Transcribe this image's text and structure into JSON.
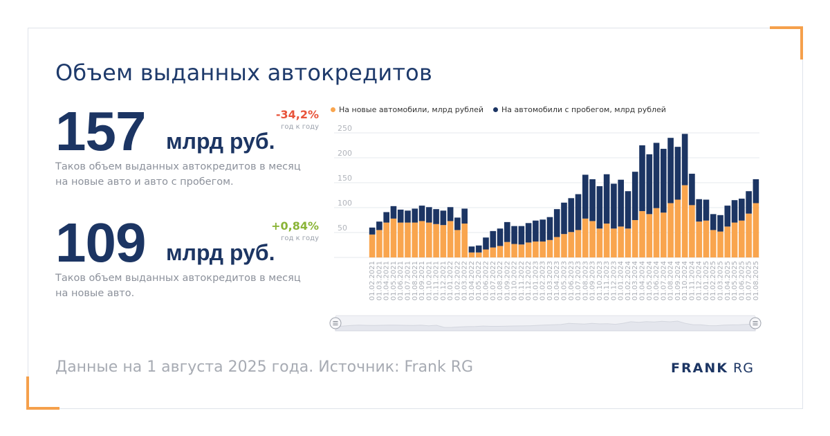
{
  "title": "Объем выданных автокредитов",
  "kpi1": {
    "value": "157",
    "unit": "млрд руб.",
    "change": "-34,2%",
    "change_label": "год к году",
    "change_color": "#e8533a",
    "description_line1": "Таков объем выданных автокредитов в месяц",
    "description_line2": "на новые авто и авто с пробегом."
  },
  "kpi2": {
    "value": "109",
    "unit": "млрд руб.",
    "change": "+0,84%",
    "change_label": "год к году",
    "change_color": "#8ab437",
    "description_line1": "Таков объем выданных автокредитов в месяц",
    "description_line2": "на новые авто."
  },
  "footer": "Данные на 1 августа 2025 года. Источник: Frank RG",
  "logo": {
    "bold": "FRANK",
    "light": "RG"
  },
  "colors": {
    "new": "#f9a54e",
    "used": "#1c3563",
    "accent": "#f5a04b",
    "title": "#1e3a6b"
  },
  "chart_data": {
    "type": "bar",
    "stacked": true,
    "legend_position": "top",
    "grid": true,
    "ylim": [
      0,
      250
    ],
    "yticks": [
      50,
      100,
      150,
      200,
      250
    ],
    "categories": [
      "01.02.2021",
      "01.03.2021",
      "01.04.2021",
      "01.05.2021",
      "01.06.2021",
      "01.07.2021",
      "01.08.2021",
      "01.09.2021",
      "01.10.2021",
      "01.11.2021",
      "01.12.2021",
      "01.01.2022",
      "01.02.2022",
      "01.03.2022",
      "01.04.2022",
      "01.05.2022",
      "01.06.2022",
      "01.07.2022",
      "01.08.2022",
      "01.09.2022",
      "01.10.2022",
      "01.11.2022",
      "01.12.2022",
      "01.01.2023",
      "01.02.2023",
      "01.03.2023",
      "01.04.2023",
      "01.05.2023",
      "01.06.2023",
      "01.07.2023",
      "01.08.2023",
      "01.09.2023",
      "01.10.2023",
      "01.11.2023",
      "01.12.2023",
      "01.01.2024",
      "01.02.2024",
      "01.03.2024",
      "01.04.2024",
      "01.05.2024",
      "01.06.2024",
      "01.07.2024",
      "01.08.2024",
      "01.09.2024",
      "01.10.2024",
      "01.11.2024",
      "01.12.2024",
      "01.01.2025",
      "01.02.2025",
      "01.03.2025",
      "01.04.2025",
      "01.05.2025",
      "01.06.2025",
      "01.07.2025",
      "01.08.2025"
    ],
    "series": [
      {
        "name": "На новые автомобили, млрд рублей",
        "color": "#f9a54e",
        "values": [
          46,
          55,
          70,
          78,
          70,
          70,
          70,
          73,
          70,
          67,
          65,
          73,
          55,
          68,
          10,
          10,
          16,
          20,
          23,
          31,
          27,
          26,
          30,
          32,
          32,
          35,
          41,
          47,
          51,
          55,
          78,
          73,
          58,
          68,
          58,
          62,
          58,
          75,
          93,
          87,
          99,
          90,
          109,
          116,
          145,
          105,
          72,
          74,
          55,
          52,
          62,
          70,
          74,
          88,
          109
        ]
      },
      {
        "name": "На автомобили с пробегом, млрд рублей",
        "color": "#1c3563",
        "values": [
          14,
          17,
          21,
          25,
          26,
          24,
          28,
          31,
          31,
          30,
          29,
          28,
          25,
          30,
          12,
          14,
          24,
          33,
          35,
          40,
          36,
          37,
          39,
          42,
          44,
          46,
          56,
          63,
          68,
          72,
          88,
          84,
          85,
          99,
          90,
          94,
          75,
          97,
          132,
          120,
          131,
          128,
          131,
          106,
          103,
          63,
          45,
          42,
          32,
          33,
          42,
          45,
          44,
          45,
          48
        ]
      }
    ]
  }
}
